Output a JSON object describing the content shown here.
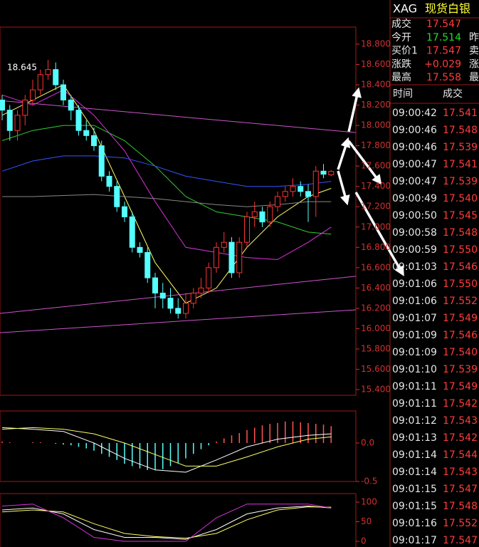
{
  "chart_data": [
    {
      "type": "candlestick",
      "ylim": [
        15.344,
        18.968
      ],
      "yticks": [
        {
          "value": 18.8,
          "label": "18.800"
        },
        {
          "value": 18.6,
          "label": "18.600"
        },
        {
          "value": 18.4,
          "label": "18.400"
        },
        {
          "value": 18.2,
          "label": "18.200"
        },
        {
          "value": 18.0,
          "label": "18.000"
        },
        {
          "value": 17.8,
          "label": "17.800"
        },
        {
          "value": 17.6,
          "label": "17.600"
        },
        {
          "value": 17.4,
          "label": "17.400"
        },
        {
          "value": 17.2,
          "label": "17.200"
        },
        {
          "value": 17.0,
          "label": "17.000"
        },
        {
          "value": 16.8,
          "label": "16.800"
        },
        {
          "value": 16.6,
          "label": "16.600"
        },
        {
          "value": 16.4,
          "label": "16.400"
        },
        {
          "value": 16.2,
          "label": "16.200"
        },
        {
          "value": 16.0,
          "label": "16.000"
        },
        {
          "value": 15.8,
          "label": "15.800"
        },
        {
          "value": 15.6,
          "label": "15.600"
        },
        {
          "value": 15.4,
          "label": "15.400"
        }
      ],
      "open": [
        18.25,
        18.15,
        17.95,
        18.1,
        18.25,
        18.35,
        18.5,
        18.55,
        18.4,
        18.25,
        18.15,
        17.95,
        17.9,
        17.8,
        17.5,
        17.4,
        17.2,
        17.1,
        16.8,
        16.75,
        16.5,
        16.35,
        16.3,
        16.2,
        16.15,
        16.25,
        16.35,
        16.4,
        16.6,
        16.8,
        16.85,
        16.55,
        16.85,
        17.1,
        17.15,
        17.05,
        17.2,
        17.3,
        17.35,
        17.4,
        17.35,
        17.3,
        17.55,
        17.514
      ],
      "high": [
        18.3,
        18.2,
        18.15,
        18.3,
        18.45,
        18.55,
        18.645,
        18.62,
        18.45,
        18.3,
        18.2,
        18.05,
        17.98,
        17.85,
        17.55,
        17.45,
        17.25,
        17.15,
        16.85,
        16.8,
        16.55,
        16.45,
        16.4,
        16.3,
        16.35,
        16.4,
        16.5,
        16.65,
        16.85,
        16.95,
        16.9,
        16.9,
        17.15,
        17.25,
        17.2,
        17.25,
        17.35,
        17.4,
        17.48,
        17.45,
        17.42,
        17.6,
        17.62,
        17.558
      ],
      "low": [
        18.05,
        17.85,
        17.85,
        18.0,
        18.2,
        18.3,
        18.45,
        18.35,
        18.2,
        18.05,
        17.9,
        17.85,
        17.75,
        17.45,
        17.35,
        17.15,
        17.05,
        16.75,
        16.7,
        16.45,
        16.2,
        16.2,
        16.15,
        16.1,
        16.1,
        16.2,
        16.3,
        16.35,
        16.55,
        16.75,
        16.5,
        16.5,
        16.8,
        17.0,
        17.0,
        17.0,
        17.15,
        17.25,
        17.3,
        17.3,
        17.05,
        17.1,
        17.48,
        17.5
      ],
      "close": [
        18.15,
        17.95,
        18.1,
        18.25,
        18.35,
        18.5,
        18.55,
        18.4,
        18.25,
        18.15,
        17.95,
        17.9,
        17.8,
        17.5,
        17.4,
        17.2,
        17.1,
        16.8,
        16.75,
        16.5,
        16.35,
        16.3,
        16.2,
        16.15,
        16.25,
        16.35,
        16.4,
        16.6,
        16.8,
        16.85,
        16.55,
        16.85,
        17.1,
        17.15,
        17.05,
        17.2,
        17.3,
        17.35,
        17.4,
        17.35,
        17.3,
        17.55,
        17.52,
        17.547
      ],
      "up_color": "#ff3232",
      "down_color": "#54ffff",
      "annotations": [
        {
          "text": "18.645"
        }
      ],
      "lines": [
        {
          "color": "#ffff66",
          "x": [
            0,
            4,
            8,
            12,
            16,
            20,
            24,
            28,
            32,
            36,
            40,
            43
          ],
          "values": [
            18.1,
            18.25,
            18.4,
            17.95,
            17.3,
            16.65,
            16.25,
            16.4,
            16.8,
            17.1,
            17.3,
            17.38
          ]
        },
        {
          "color": "#dd33dd",
          "x": [
            0,
            4,
            8,
            12,
            16,
            20,
            24,
            28,
            32,
            36,
            40,
            43
          ],
          "values": [
            18.3,
            18.2,
            18.35,
            18.1,
            17.75,
            17.25,
            16.8,
            16.75,
            16.7,
            16.68,
            16.85,
            17.0
          ]
        },
        {
          "color": "#33cc33",
          "x": [
            0,
            4,
            8,
            12,
            16,
            20,
            24,
            28,
            32,
            36,
            40,
            43
          ],
          "values": [
            17.85,
            17.95,
            18.0,
            18.0,
            17.85,
            17.6,
            17.3,
            17.15,
            17.1,
            17.05,
            16.95,
            16.93
          ]
        },
        {
          "color": "#3355ff",
          "x": [
            0,
            4,
            8,
            12,
            16,
            20,
            24,
            28,
            32,
            36,
            40,
            43
          ],
          "values": [
            17.55,
            17.65,
            17.7,
            17.7,
            17.68,
            17.6,
            17.5,
            17.45,
            17.4,
            17.4,
            17.42,
            17.45
          ]
        },
        {
          "color": "#888888",
          "x": [
            0,
            4,
            8,
            12,
            16,
            20,
            24,
            28,
            32,
            36,
            40,
            43
          ],
          "values": [
            17.3,
            17.3,
            17.31,
            17.32,
            17.3,
            17.28,
            17.25,
            17.22,
            17.2,
            17.22,
            17.25,
            17.25
          ]
        },
        {
          "color": "#cc55cc",
          "x": [
            -0.28,
            46.23
          ],
          "values": [
            18.245,
            17.93
          ]
        },
        {
          "color": "#cc55cc",
          "x": [
            -0.28,
            46.23
          ],
          "values": [
            16.15,
            16.515
          ]
        },
        {
          "color": "#cc55cc",
          "x": [
            -0.28,
            46.23
          ],
          "values": [
            15.96,
            16.185
          ]
        }
      ]
    },
    {
      "type": "bar",
      "ylim": [
        -0.5,
        0.417
      ],
      "yticks": [
        {
          "value": 0,
          "label": "0.0"
        },
        -0.5
      ],
      "values": [
        0.02,
        0.01,
        0,
        0,
        0.01,
        0.01,
        0,
        -0.01,
        -0.02,
        -0.03,
        -0.05,
        -0.07,
        -0.1,
        -0.14,
        -0.18,
        -0.22,
        -0.27,
        -0.3,
        -0.33,
        -0.35,
        -0.35,
        -0.34,
        -0.3,
        -0.26,
        -0.2,
        -0.14,
        -0.08,
        -0.03,
        0.02,
        0.06,
        0.1,
        0.13,
        0.17,
        0.2,
        0.23,
        0.25,
        0.26,
        0.28,
        0.28,
        0.27,
        0.26,
        0.25,
        0.24,
        0.22
      ],
      "up_color": "#ff5555",
      "down_color": "#54ffff",
      "lines": [
        {
          "color": "#ffffff",
          "x": [
            0,
            4,
            8,
            12,
            16,
            20,
            24,
            28,
            32,
            36,
            40,
            43
          ],
          "values": [
            0.2,
            0.18,
            0.15,
            0.0,
            -0.2,
            -0.35,
            -0.38,
            -0.22,
            -0.05,
            0.05,
            0.1,
            0.12
          ]
        },
        {
          "color": "#ffff66",
          "x": [
            0,
            4,
            8,
            12,
            16,
            20,
            24,
            28,
            32,
            36,
            40,
            43
          ],
          "values": [
            0.18,
            0.2,
            0.18,
            0.12,
            0.0,
            -0.15,
            -0.3,
            -0.3,
            -0.18,
            -0.05,
            0.05,
            0.08
          ]
        }
      ]
    },
    {
      "type": "line",
      "ylim": [
        -14.5,
        121.8
      ],
      "yticks": [
        100,
        50,
        0
      ],
      "lines": [
        {
          "color": "#ffffff",
          "x": [
            0,
            4,
            8,
            12,
            16,
            20,
            24,
            28,
            32,
            36,
            40,
            43
          ],
          "values": [
            80,
            85,
            70,
            30,
            10,
            10,
            5,
            30,
            70,
            85,
            90,
            85
          ]
        },
        {
          "color": "#ffff66",
          "x": [
            0,
            4,
            8,
            12,
            16,
            20,
            24,
            28,
            32,
            36,
            40,
            43
          ],
          "values": [
            75,
            80,
            75,
            45,
            20,
            12,
            8,
            20,
            55,
            80,
            88,
            87
          ]
        },
        {
          "color": "#dd33dd",
          "x": [
            0,
            4,
            8,
            12,
            16,
            20,
            24,
            28,
            32,
            36,
            40,
            43
          ],
          "values": [
            90,
            95,
            60,
            10,
            0,
            0,
            0,
            60,
            95,
            95,
            95,
            85
          ]
        }
      ]
    }
  ],
  "quote": {
    "symbol": "XAG",
    "name": "现货白银",
    "rows": [
      {
        "label": "成交",
        "value": "17.547",
        "color": "#ff3c3c"
      },
      {
        "label": "今开",
        "value": "17.514",
        "color": "#22dd22",
        "extra": "昨"
      },
      {
        "label": "买价1",
        "value": "17.547",
        "color": "#ff3c3c",
        "extra": "卖"
      },
      {
        "label": "涨跌",
        "value": "+0.029",
        "color": "#ff3c3c",
        "extra": "涨"
      },
      {
        "label": "最高",
        "value": "17.558",
        "color": "#ff3c3c",
        "extra": "最"
      }
    ]
  },
  "trades": {
    "headers": [
      "时间",
      "成交"
    ],
    "rows": [
      [
        "09:00:42",
        "17.541"
      ],
      [
        "09:00:46",
        "17.548"
      ],
      [
        "09:00:46",
        "17.539"
      ],
      [
        "09:00:47",
        "17.541"
      ],
      [
        "09:00:47",
        "17.539"
      ],
      [
        "09:00:49",
        "17.540"
      ],
      [
        "09:00:50",
        "17.545"
      ],
      [
        "09:00:58",
        "17.548"
      ],
      [
        "09:00:59",
        "17.550"
      ],
      [
        "09:01:03",
        "17.546"
      ],
      [
        "09:01:06",
        "17.550"
      ],
      [
        "09:01:06",
        "17.552"
      ],
      [
        "09:01:07",
        "17.549"
      ],
      [
        "09:01:09",
        "17.546"
      ],
      [
        "09:01:09",
        "17.540"
      ],
      [
        "09:01:10",
        "17.539"
      ],
      [
        "09:01:11",
        "17.549"
      ],
      [
        "09:01:11",
        "17.542"
      ],
      [
        "09:01:12",
        "17.543"
      ],
      [
        "09:01:13",
        "17.542"
      ],
      [
        "09:01:14",
        "17.544"
      ],
      [
        "09:01:14",
        "17.543"
      ],
      [
        "09:01:15",
        "17.547"
      ],
      [
        "09:01:15",
        "17.548"
      ],
      [
        "09:01:16",
        "17.552"
      ],
      [
        "09:01:17",
        "17.547"
      ]
    ]
  }
}
